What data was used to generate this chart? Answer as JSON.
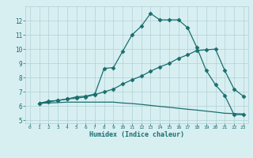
{
  "xlabel": "Humidex (Indice chaleur)",
  "bg_color": "#d8eff2",
  "grid_color": "#b0d0d4",
  "line_color": "#1a6e6e",
  "xlim": [
    -0.5,
    23.5
  ],
  "ylim": [
    4.8,
    13.0
  ],
  "xticks": [
    0,
    1,
    2,
    3,
    4,
    5,
    6,
    7,
    8,
    9,
    10,
    11,
    12,
    13,
    14,
    15,
    16,
    17,
    18,
    19,
    20,
    21,
    22,
    23
  ],
  "yticks": [
    5,
    6,
    7,
    8,
    9,
    10,
    11,
    12
  ],
  "line1_x": [
    1,
    2,
    3,
    4,
    5,
    6,
    7,
    8,
    9,
    10,
    11,
    12,
    13,
    14,
    15,
    16,
    17,
    18,
    19,
    20,
    21,
    22,
    23
  ],
  "line1_y": [
    6.2,
    6.35,
    6.4,
    6.5,
    6.65,
    6.7,
    6.85,
    8.65,
    8.7,
    9.85,
    11.0,
    11.6,
    12.5,
    12.05,
    12.05,
    12.05,
    11.5,
    10.1,
    8.5,
    7.5,
    6.75,
    5.4,
    5.4
  ],
  "line2_x": [
    1,
    2,
    3,
    4,
    5,
    6,
    7,
    8,
    9,
    10,
    11,
    12,
    13,
    14,
    15,
    16,
    17,
    18,
    19,
    20,
    21,
    22,
    23
  ],
  "line2_y": [
    6.2,
    6.3,
    6.4,
    6.5,
    6.55,
    6.65,
    6.8,
    7.0,
    7.2,
    7.55,
    7.85,
    8.1,
    8.45,
    8.75,
    9.0,
    9.35,
    9.6,
    9.9,
    9.95,
    10.0,
    8.5,
    7.2,
    6.7
  ],
  "line3_x": [
    1,
    2,
    3,
    4,
    5,
    6,
    7,
    8,
    9,
    10,
    11,
    12,
    13,
    14,
    15,
    16,
    17,
    18,
    19,
    20,
    21,
    22,
    23
  ],
  "line3_y": [
    6.2,
    6.22,
    6.25,
    6.28,
    6.28,
    6.28,
    6.28,
    6.28,
    6.28,
    6.22,
    6.18,
    6.12,
    6.05,
    5.98,
    5.92,
    5.85,
    5.78,
    5.72,
    5.65,
    5.58,
    5.5,
    5.48,
    5.45
  ]
}
